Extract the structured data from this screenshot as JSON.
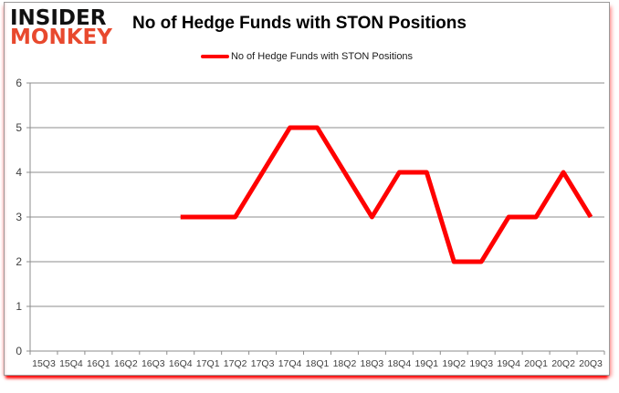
{
  "header": {
    "logo_line1": "INSIDER",
    "logo_line2": "MONKEY",
    "title": "No of Hedge Funds with STON Positions"
  },
  "legend": {
    "label": "No of Hedge Funds with STON Positions"
  },
  "chart_data": {
    "type": "line",
    "title": "No of Hedge Funds with STON Positions",
    "xlabel": "",
    "ylabel": "",
    "categories": [
      "15Q3",
      "15Q4",
      "16Q1",
      "16Q2",
      "16Q3",
      "16Q4",
      "17Q1",
      "17Q2",
      "17Q3",
      "17Q4",
      "18Q1",
      "18Q2",
      "18Q3",
      "18Q4",
      "19Q1",
      "19Q2",
      "19Q3",
      "19Q4",
      "20Q1",
      "20Q2",
      "20Q3"
    ],
    "series": [
      {
        "name": "No of Hedge Funds with STON Positions",
        "color": "#FF0000",
        "values": [
          null,
          null,
          null,
          null,
          null,
          3,
          3,
          3,
          4,
          5,
          5,
          4,
          3,
          4,
          4,
          2,
          2,
          3,
          3,
          4,
          3
        ]
      }
    ],
    "ylim": [
      0,
      6
    ],
    "yticks": [
      0,
      1,
      2,
      3,
      4,
      5,
      6
    ],
    "grid": true,
    "legend_position": "top-center"
  },
  "colors": {
    "series_line": "#FF0000",
    "logo_black": "#111111",
    "logo_red": "#E8492E",
    "axis_gray": "#8c8c8c",
    "tick_text": "#3f3f3f"
  }
}
